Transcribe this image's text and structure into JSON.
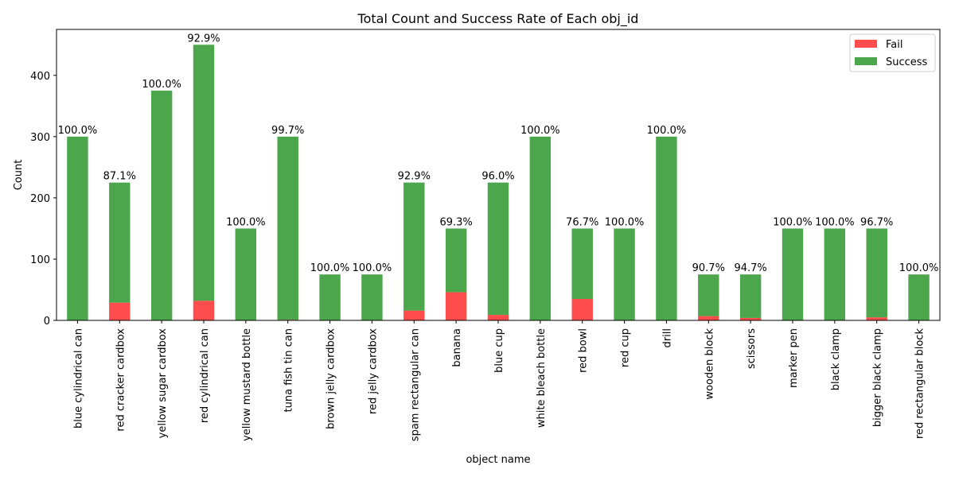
{
  "chart_data": {
    "type": "bar",
    "stacked": true,
    "title": "Total Count and Success Rate of Each obj_id",
    "xlabel": "object name",
    "ylabel": "Count",
    "ylim": [
      0,
      475
    ],
    "yticks": [
      0,
      100,
      200,
      300,
      400
    ],
    "grid": false,
    "legend_position": "upper right",
    "categories": [
      "blue cylindrical can",
      "red cracker cardbox",
      "yellow sugar cardbox",
      "red cylindrical can",
      "yellow mustard bottle",
      "tuna fish tin can",
      "brown jelly cardbox",
      "red jelly cardbox",
      "spam rectangular can",
      "banana",
      "blue cup",
      "white bleach bottle",
      "red bowl",
      "red cup",
      "drill",
      "wooden block",
      "scissors",
      "marker pen",
      "black clamp",
      "bigger black clamp",
      "red rectangular block"
    ],
    "series": [
      {
        "name": "Fail",
        "color": "#ff4c4c",
        "values": [
          0,
          29,
          0,
          32,
          0,
          1,
          0,
          0,
          16,
          46,
          9,
          0,
          35,
          0,
          0,
          7,
          4,
          0,
          0,
          5,
          0
        ]
      },
      {
        "name": "Success",
        "color": "#4ca64c",
        "values": [
          300,
          196,
          375,
          418,
          150,
          299,
          75,
          75,
          209,
          104,
          216,
          300,
          115,
          150,
          300,
          68,
          71,
          150,
          150,
          145,
          75
        ]
      }
    ],
    "bar_labels": [
      "100.0%",
      "87.1%",
      "100.0%",
      "92.9%",
      "100.0%",
      "99.7%",
      "100.0%",
      "100.0%",
      "92.9%",
      "69.3%",
      "96.0%",
      "100.0%",
      "76.7%",
      "100.0%",
      "100.0%",
      "90.7%",
      "94.7%",
      "100.0%",
      "100.0%",
      "96.7%",
      "100.0%"
    ]
  }
}
